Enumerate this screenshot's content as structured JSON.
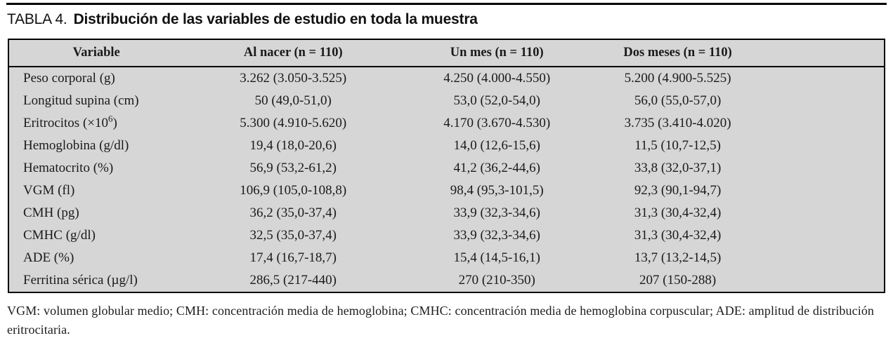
{
  "title": {
    "label": "TABLA 4.",
    "text": "Distribución de las variables de estudio en toda la muestra"
  },
  "table": {
    "columns": [
      "Variable",
      "Al nacer (n = 110)",
      "Un mes (n = 110)",
      "Dos meses (n = 110)"
    ],
    "rows": [
      [
        "Peso corporal (g)",
        "3.262 (3.050-3.525)",
        "4.250 (4.000-4.550)",
        "5.200 (4.900-5.525)"
      ],
      [
        "Longitud supina (cm)",
        "50 (49,0-51,0)",
        "53,0 (52,0-54,0)",
        "56,0 (55,0-57,0)"
      ],
      [
        "Eritrocitos (×10⁶)",
        "5.300 (4.910-5.620)",
        "4.170 (3.670-4.530)",
        "3.735 (3.410-4.020)"
      ],
      [
        "Hemoglobina (g/dl)",
        "19,4 (18,0-20,6)",
        "14,0 (12,6-15,6)",
        "11,5 (10,7-12,5)"
      ],
      [
        "Hematocrito (%)",
        "56,9 (53,2-61,2)",
        "41,2 (36,2-44,6)",
        "33,8 (32,0-37,1)"
      ],
      [
        "VGM (fl)",
        "106,9 (105,0-108,8)",
        "98,4 (95,3-101,5)",
        "92,3 (90,1-94,7)"
      ],
      [
        "CMH (pg)",
        "36,2 (35,0-37,4)",
        "33,9 (32,3-34,6)",
        "31,3 (30,4-32,4)"
      ],
      [
        "CMHC (g/dl)",
        "32,5 (35,0-37,4)",
        "33,9 (32,3-34,6)",
        "31,3 (30,4-32,4)"
      ],
      [
        "ADE (%)",
        "17,4 (16,7-18,7)",
        "15,4 (14,5-16,1)",
        "13,7 (13,2-14,5)"
      ],
      [
        "Ferritina sérica (µg/l)",
        "286,5 (217-440)",
        "270 (210-350)",
        "207 (150-288)"
      ]
    ]
  },
  "footnote": "VGM: volumen globular medio; CMH: concentración media de hemoglobina; CMHC: concentración media de hemoglobina corpuscular; ADE: amplitud de distribución eritrocitaria.",
  "colors": {
    "table_background": "#d6d6d6",
    "border": "#000000",
    "text": "#1a1a1a"
  }
}
